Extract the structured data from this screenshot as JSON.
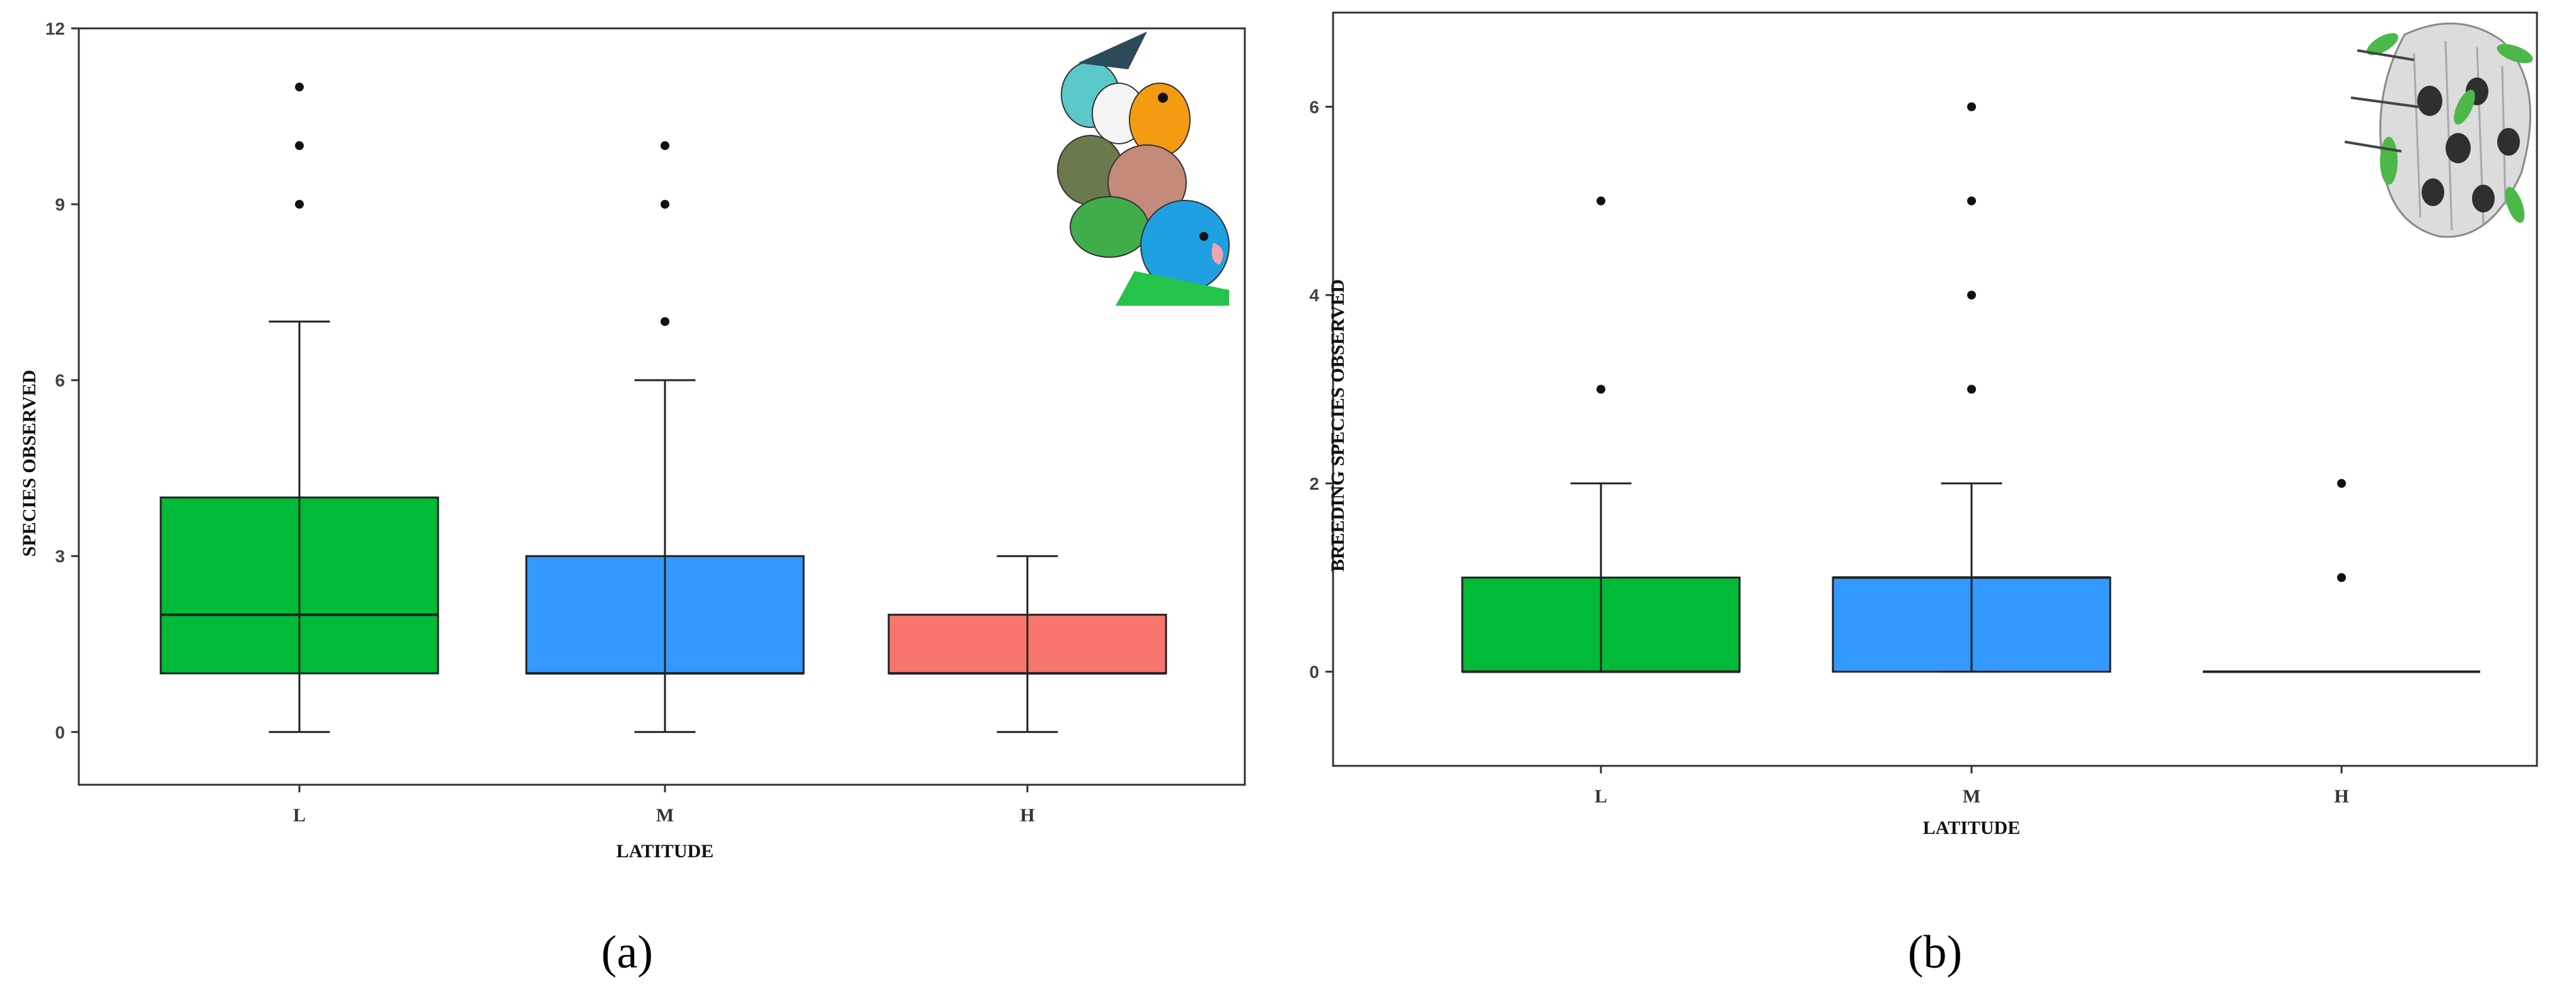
{
  "chart_data": [
    {
      "type": "box",
      "panel_label": "(a)",
      "xlabel": "LATITUDE",
      "ylabel": "SPECIES OBSERVED",
      "ylim": [
        -0.9,
        12
      ],
      "yticks": [
        0,
        3,
        6,
        9,
        12
      ],
      "grid": false,
      "categories": [
        "L",
        "M",
        "H"
      ],
      "series": [
        {
          "category": "L",
          "color": "#00BA38",
          "q1": 1,
          "median": 2,
          "q3": 4,
          "whisker_low": 0,
          "whisker_high": 7,
          "outliers": [
            9,
            10,
            11
          ]
        },
        {
          "category": "M",
          "color": "#3399FF",
          "q1": 1,
          "median": 1,
          "q3": 3,
          "whisker_low": 0,
          "whisker_high": 6,
          "outliers": [
            7,
            9,
            10
          ]
        },
        {
          "category": "H",
          "color": "#F8766D",
          "q1": 1,
          "median": 1,
          "q3": 2,
          "whisker_low": 0,
          "whisker_high": 3,
          "outliers": []
        }
      ],
      "decoration": "parrots-illustration"
    },
    {
      "type": "box",
      "panel_label": "(b)",
      "xlabel": "LATITUDE",
      "ylabel": "BREEDING SPECIES OBSERVED",
      "ylim": [
        -1,
        7
      ],
      "yticks": [
        0,
        2,
        4,
        6
      ],
      "grid": false,
      "categories": [
        "L",
        "M",
        "H"
      ],
      "series": [
        {
          "category": "L",
          "color": "#00BA38",
          "q1": 0,
          "median": 0,
          "q3": 1,
          "whisker_low": 0,
          "whisker_high": 2,
          "outliers": [
            3,
            5
          ]
        },
        {
          "category": "M",
          "color": "#3399FF",
          "q1": 0,
          "median": 1,
          "q3": 1,
          "whisker_low": 0,
          "whisker_high": 2,
          "outliers": [
            3,
            4,
            5,
            6
          ]
        },
        {
          "category": "H",
          "color": "#F8766D",
          "q1": 0,
          "median": 0,
          "q3": 0,
          "whisker_low": 0,
          "whisker_high": 0,
          "outliers": [
            1,
            2
          ]
        }
      ],
      "decoration": "nest-illustration"
    }
  ]
}
